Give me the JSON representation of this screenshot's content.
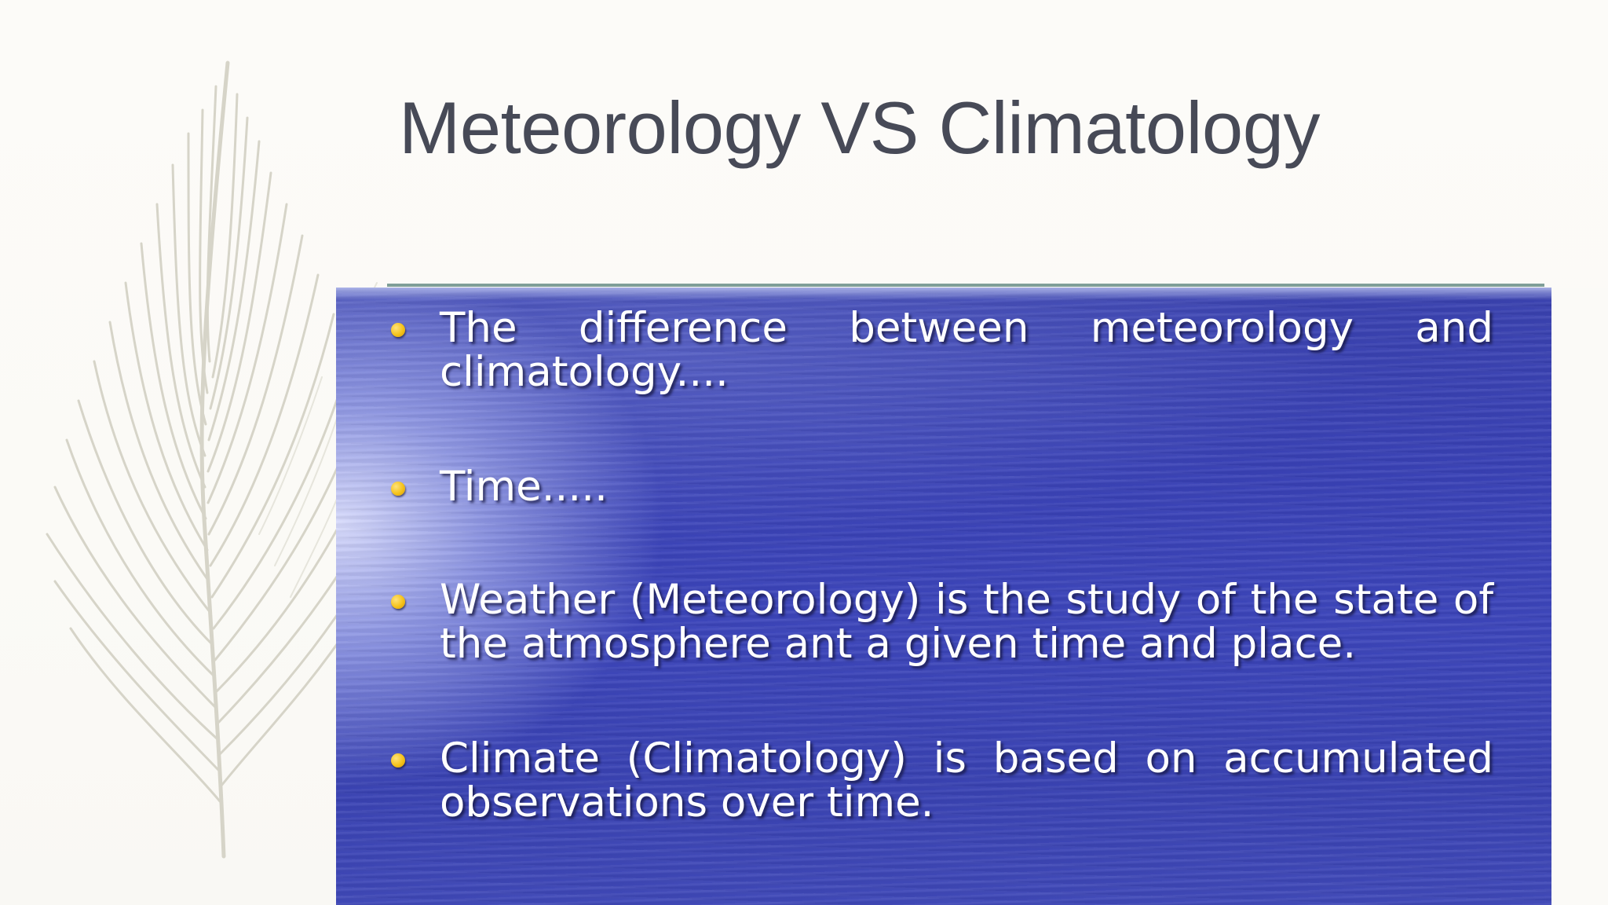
{
  "slide": {
    "title": "Meteorology VS Climatology",
    "bullets": [
      {
        "text": "The difference between meteorology and climatology...."
      },
      {
        "text": "Time....."
      },
      {
        "text": "Weather (Meteorology) is the study of the state of the atmosphere ant a given time and place."
      },
      {
        "text": "Climate (Climatology) is based on accumulated observations over time."
      }
    ],
    "colors": {
      "title": "#474a57",
      "rule": "#7f9e98",
      "panel_blue": "#3b43b0",
      "bullet_dot": "#f5c21a",
      "bullet_text": "#ffffff",
      "background": "#fbfaf7"
    },
    "icons": {
      "decoration": "feather-icon",
      "bullet": "bullet-dot-icon"
    }
  }
}
